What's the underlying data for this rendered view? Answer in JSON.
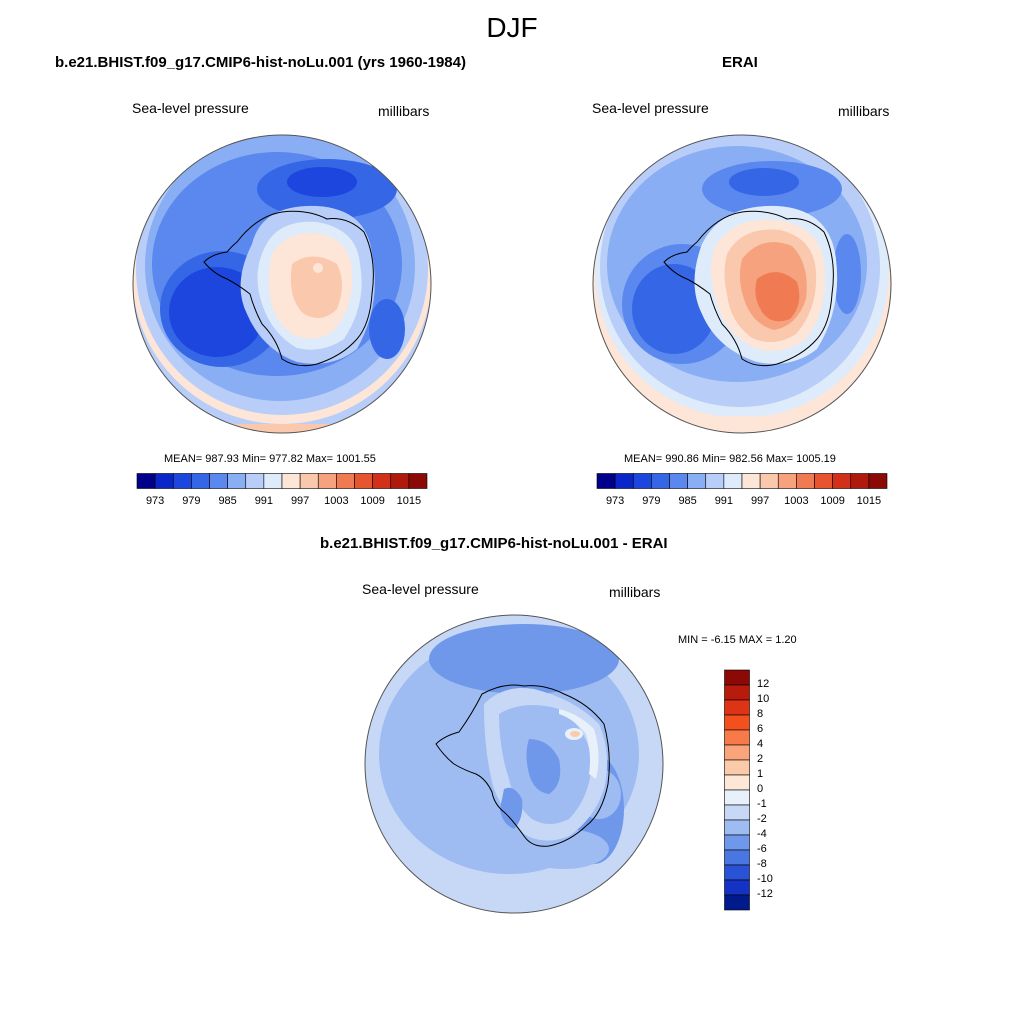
{
  "figure_title": "DJF",
  "colors": {
    "land_outline": "#000000",
    "circle_outline": "#555555"
  },
  "panels": [
    {
      "id": "model",
      "title": "b.e21.BHIST.f09_g17.CMIP6-hist-noLu.001 (yrs 1960-1984)",
      "variable": "Sea-level pressure",
      "units": "millibars",
      "stats": "MEAN= 987.93  Min= 977.82  Max= 1001.55",
      "colorbar_ticks": [
        "973",
        "979",
        "985",
        "991",
        "997",
        "1003",
        "1009",
        "1015"
      ],
      "colorbar_colors": [
        "#00008b",
        "#0a26c9",
        "#1c46de",
        "#3466e6",
        "#5a88ee",
        "#8aaef4",
        "#b8cef8",
        "#deebfa",
        "#fde6d8",
        "#fac8ac",
        "#f6a27e",
        "#f07a52",
        "#e65430",
        "#d3301a",
        "#b01a0e",
        "#8b0a06"
      ]
    },
    {
      "id": "obs",
      "title": "ERAI",
      "variable": "Sea-level pressure",
      "units": "millibars",
      "stats": "MEAN= 990.86  Min= 982.56  Max= 1005.19",
      "colorbar_ticks": [
        "973",
        "979",
        "985",
        "991",
        "997",
        "1003",
        "1009",
        "1015"
      ],
      "colorbar_colors": [
        "#00008b",
        "#0a26c9",
        "#1c46de",
        "#3466e6",
        "#5a88ee",
        "#8aaef4",
        "#b8cef8",
        "#deebfa",
        "#fde6d8",
        "#fac8ac",
        "#f6a27e",
        "#f07a52",
        "#e65430",
        "#d3301a",
        "#b01a0e",
        "#8b0a06"
      ]
    },
    {
      "id": "diff",
      "title": "b.e21.BHIST.f09_g17.CMIP6-hist-noLu.001 - ERAI",
      "variable": "Sea-level pressure",
      "units": "millibars",
      "stats": "MIN =  -6.15 MAX =   1.20",
      "colorbar_ticks": [
        "12",
        "10",
        "8",
        "6",
        "4",
        "2",
        "1",
        "0",
        "-1",
        "-2",
        "-4",
        "-6",
        "-8",
        "-10",
        "-12"
      ],
      "colorbar_colors": [
        "#8b0a06",
        "#b81a0c",
        "#dc3414",
        "#f4501e",
        "#f77a48",
        "#f9a47a",
        "#fbcaa8",
        "#fde8d8",
        "#e8f0fb",
        "#c6d8f6",
        "#9ebcf2",
        "#7098ea",
        "#4a76e2",
        "#2a52d6",
        "#1432c4",
        "#001a8c"
      ]
    }
  ]
}
